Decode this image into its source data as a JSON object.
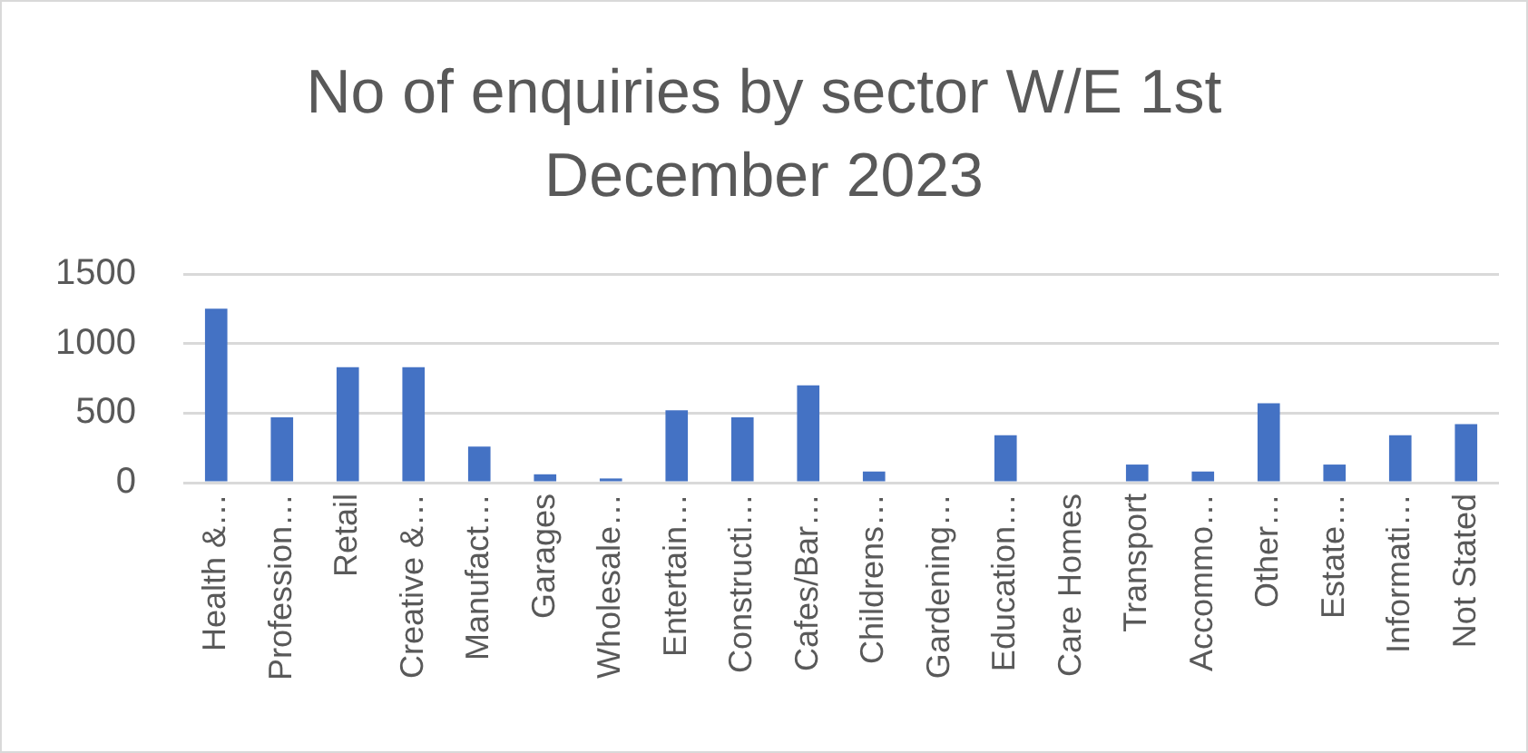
{
  "chart_data": {
    "type": "bar",
    "title": "No of enquiries by sector W/E 1st December 2023",
    "categories": [
      "Health &…",
      "Profession…",
      "Retail",
      "Creative &…",
      "Manufact…",
      "Garages",
      "Wholesale…",
      "Entertain…",
      "Constructi…",
      "Cafes/Bar…",
      "Childrens…",
      "Gardening…",
      "Education…",
      "Care Homes",
      "Transport",
      "Accommo…",
      "Other…",
      "Estate…",
      "Informati…",
      "Not Stated"
    ],
    "values": [
      1250,
      470,
      830,
      830,
      260,
      60,
      30,
      520,
      470,
      700,
      80,
      0,
      340,
      0,
      130,
      80,
      570,
      130,
      340,
      420
    ],
    "color": "#4472c4",
    "ylim": [
      0,
      1500
    ],
    "yticks": [
      0,
      500,
      1000,
      1500
    ],
    "grid": "y"
  }
}
